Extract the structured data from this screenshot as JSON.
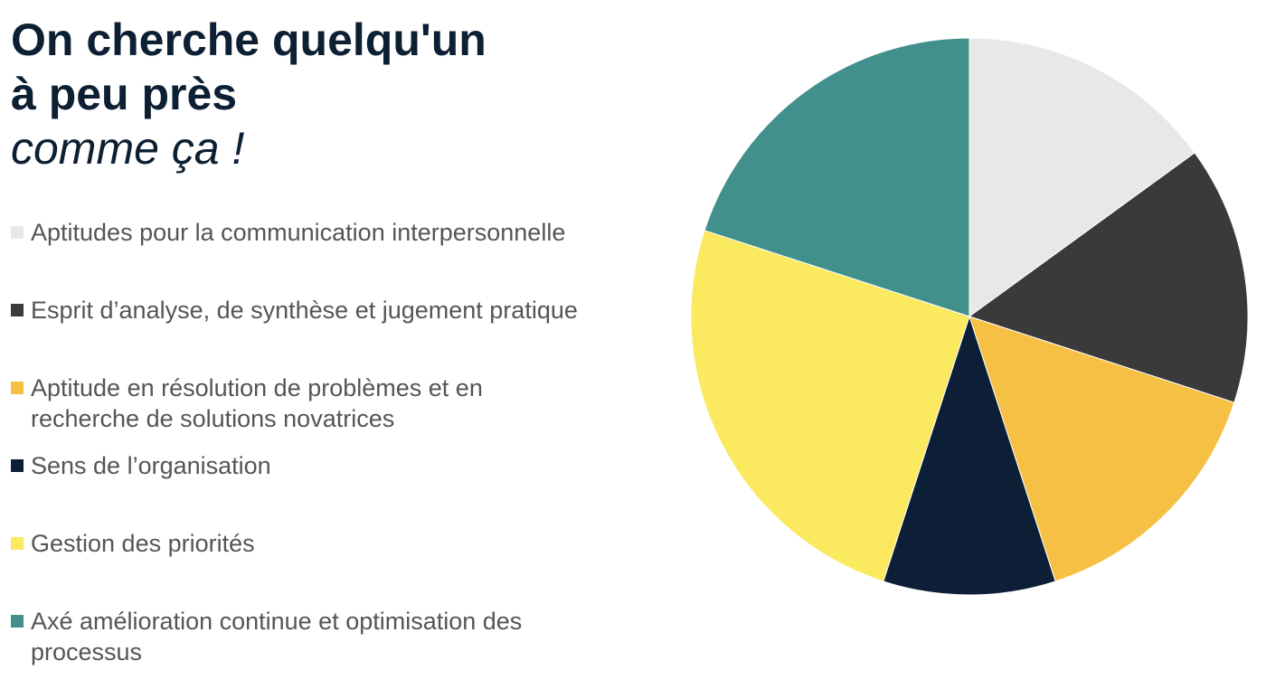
{
  "title": {
    "line1": "On cherche quelqu'un",
    "line2": "à peu près",
    "line3": "comme ça !"
  },
  "chart_data": {
    "type": "pie",
    "title": "",
    "legend_placement": "left",
    "start_angle_deg": 0,
    "direction": "clockwise",
    "slices": [
      {
        "label": "Aptitudes pour la communication interpersonnelle",
        "value": 15,
        "color": "#e8e8e8"
      },
      {
        "label": "Esprit d’analyse, de synthèse et jugement pratique",
        "value": 15,
        "color": "#3a3a3a"
      },
      {
        "label": "Aptitude en résolution de problèmes et en recherche de solutions novatrices",
        "value": 15,
        "color": "#f5c043"
      },
      {
        "label": "Sens de l’organisation",
        "value": 10,
        "color": "#0d1f36"
      },
      {
        "label": "Gestion des priorités",
        "value": 25,
        "color": "#fbe960"
      },
      {
        "label": "Axé amélioration continue et optimisation des processus",
        "value": 20,
        "color": "#41908b"
      }
    ]
  }
}
